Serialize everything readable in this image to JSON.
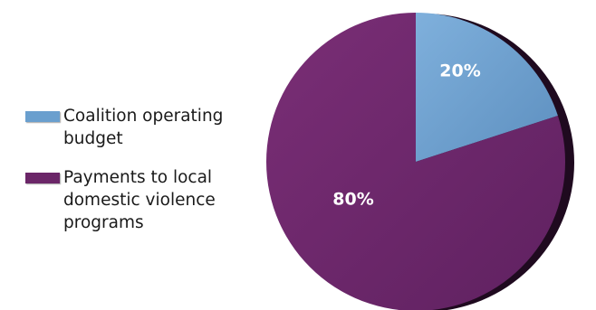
{
  "chart_data": {
    "type": "pie",
    "title": "",
    "slices": [
      {
        "label": "Coalition operating budget",
        "value": 20,
        "display": "20%",
        "color": "#6a9fce"
      },
      {
        "label": "Payments to local domestic violence programs",
        "value": 80,
        "display": "80%",
        "color": "#6b2668"
      }
    ],
    "start_angle_deg": 0,
    "direction": "clockwise",
    "legend_position": "left",
    "data_labels": true
  }
}
